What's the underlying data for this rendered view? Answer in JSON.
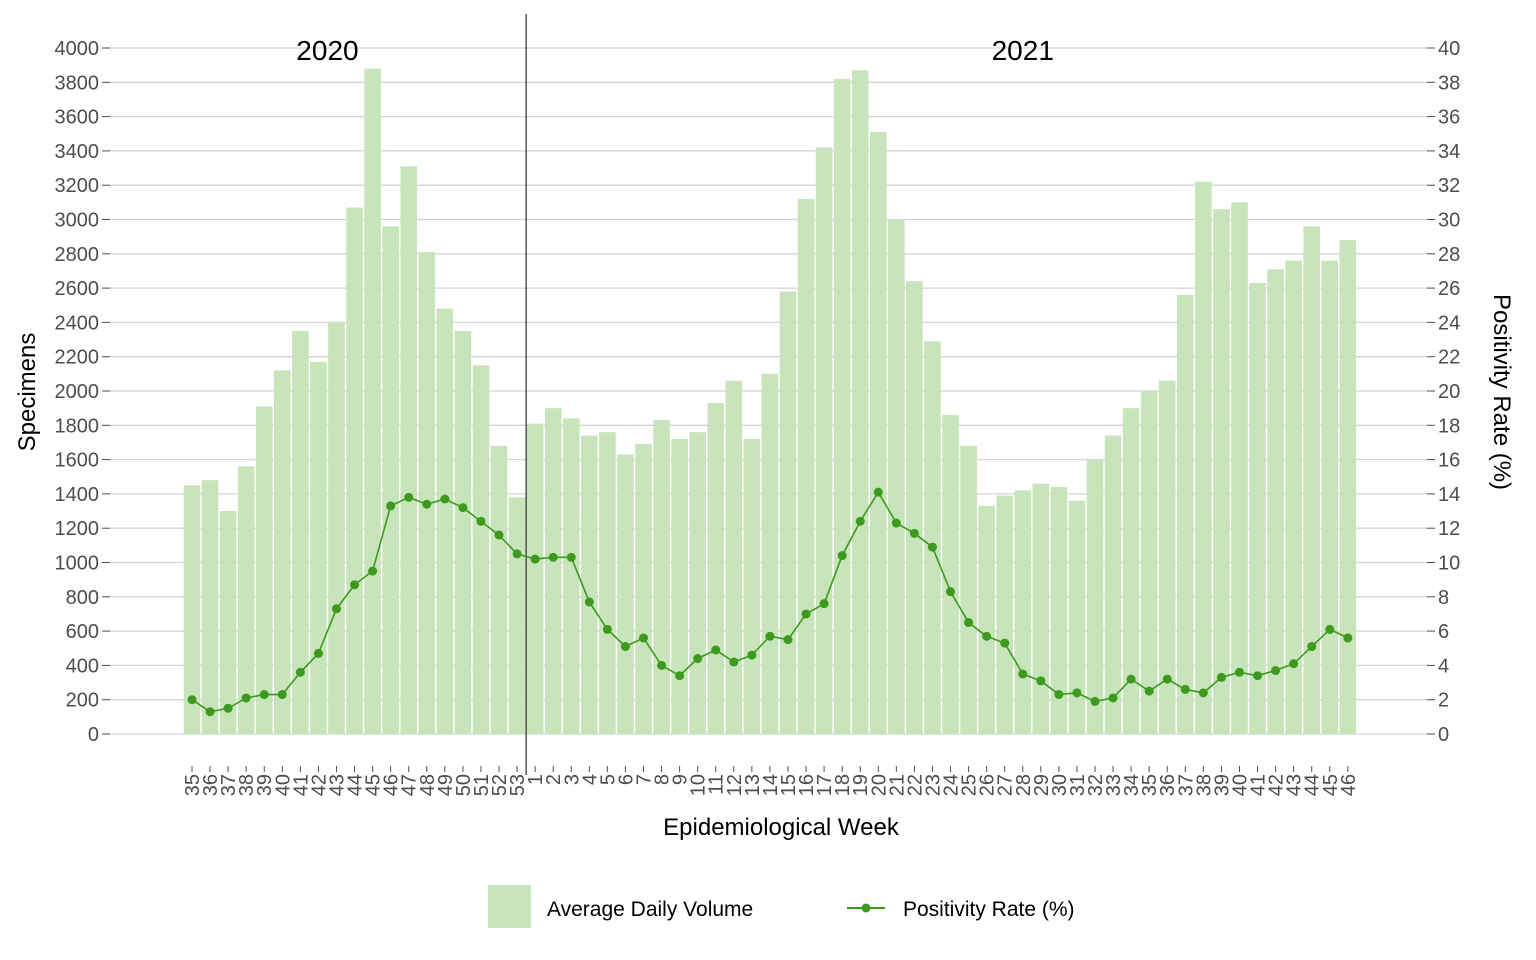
{
  "chart_data": {
    "type": "bar",
    "title": "",
    "xlabel": "Epidemiological Week",
    "ylabel": "Specimens",
    "y2label": "Positivity Rate (%)",
    "ylim": [
      0,
      4000
    ],
    "y2lim": [
      0,
      40
    ],
    "yticks": [
      0,
      200,
      400,
      600,
      800,
      1000,
      1200,
      1400,
      1600,
      1800,
      2000,
      2200,
      2400,
      2600,
      2800,
      3000,
      3200,
      3400,
      3600,
      3800,
      4000
    ],
    "y2ticks": [
      0,
      2,
      4,
      6,
      8,
      10,
      12,
      14,
      16,
      18,
      20,
      22,
      24,
      26,
      28,
      30,
      32,
      34,
      36,
      38,
      40
    ],
    "grid": true,
    "legend_position": "bottom",
    "year_labels": [
      {
        "text": "2020",
        "center_week_index": 7.5
      },
      {
        "text": "2021",
        "center_week_index": 46
      }
    ],
    "year_divider_between": [
      18,
      19
    ],
    "categories": [
      "35",
      "36",
      "37",
      "38",
      "39",
      "40",
      "41",
      "42",
      "43",
      "44",
      "45",
      "46",
      "47",
      "48",
      "49",
      "50",
      "51",
      "52",
      "53",
      "1",
      "2",
      "3",
      "4",
      "5",
      "6",
      "7",
      "8",
      "9",
      "10",
      "11",
      "12",
      "13",
      "14",
      "15",
      "16",
      "17",
      "18",
      "19",
      "20",
      "21",
      "22",
      "23",
      "24",
      "25",
      "26",
      "27",
      "28",
      "29",
      "30",
      "31",
      "32",
      "33",
      "34",
      "35",
      "36",
      "37",
      "38",
      "39",
      "40",
      "41",
      "42",
      "43",
      "44",
      "45",
      "46"
    ],
    "series": [
      {
        "name": "Average Daily Volume",
        "kind": "bar",
        "color": "#c7e4bb",
        "values": [
          1450,
          1480,
          1300,
          1560,
          1910,
          2120,
          2350,
          2170,
          2400,
          3070,
          3880,
          2960,
          3310,
          2810,
          2480,
          2350,
          2150,
          1680,
          1380,
          1810,
          1900,
          1840,
          1740,
          1760,
          1630,
          1690,
          1830,
          1720,
          1760,
          1930,
          2060,
          1720,
          2100,
          2580,
          3120,
          3420,
          3820,
          3870,
          3510,
          3000,
          2640,
          2290,
          1860,
          1680,
          1330,
          1390,
          1420,
          1460,
          1440,
          1360,
          1600,
          1740,
          1900,
          2000,
          2060,
          2560,
          3220,
          3060,
          3100,
          2630,
          2710,
          2760,
          2960,
          2760,
          2880
        ]
      },
      {
        "name": "Positivity Rate (%)",
        "kind": "line",
        "axis": "right",
        "color": "#3d9a1f",
        "values": [
          2.0,
          1.3,
          1.5,
          2.1,
          2.3,
          2.3,
          3.6,
          4.7,
          7.3,
          8.7,
          9.5,
          13.3,
          13.8,
          13.4,
          13.7,
          13.2,
          12.4,
          11.6,
          10.5,
          10.2,
          10.3,
          10.3,
          7.7,
          6.1,
          5.1,
          5.6,
          4.0,
          3.4,
          4.4,
          4.9,
          4.2,
          4.6,
          5.7,
          5.5,
          7.0,
          7.6,
          10.4,
          12.4,
          14.1,
          12.3,
          11.7,
          10.9,
          8.3,
          6.5,
          5.7,
          5.3,
          3.5,
          3.1,
          2.3,
          2.4,
          1.9,
          2.1,
          3.2,
          2.5,
          3.2,
          2.6,
          2.4,
          3.3,
          3.6,
          3.4,
          3.7,
          4.1,
          5.1,
          6.1,
          5.6
        ]
      }
    ]
  }
}
